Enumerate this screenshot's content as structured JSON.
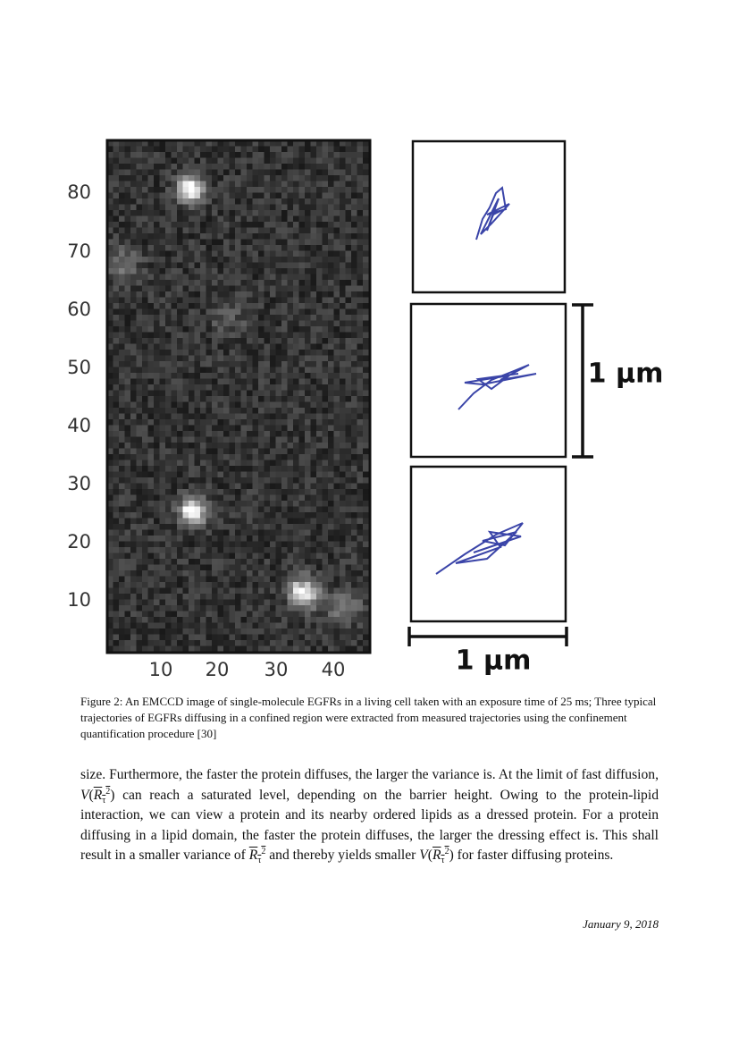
{
  "figure": {
    "y_ticks": [
      "80",
      "70",
      "60",
      "50",
      "40",
      "30",
      "20",
      "10"
    ],
    "x_ticks": [
      "10",
      "20",
      "30",
      "40"
    ],
    "scale_vertical": "1 µm",
    "scale_horizontal": "1 µm",
    "caption": "Figure 2: An EMCCD image of single-molecule EGFRs in a living cell taken with an exposure time of 25 ms; Three typical trajectories of EGFRs diffusing in a confined region were extracted from measured trajectories using the confinement quantification procedure [30]"
  },
  "body": {
    "paragraph": [
      "size. Furthermore, the faster the protein diffuses, the larger the variance is. At the limit of fast diffusion, ",
      {
        "func": "V",
        "open": "(",
        "base": "R",
        "sub": "τ",
        "sup": "2",
        "close": ")"
      },
      " can reach a saturated level, depending on the barrier height. Owing to the protein-lipid interaction, we can view a protein and its nearby ordered lipids as a dressed protein. For a protein diffusing in a lipid domain, the faster the protein diffuses, the larger the dressing effect is. This shall result in a smaller variance of ",
      {
        "base": "R",
        "sub": "τ",
        "sup": "2"
      },
      " and thereby yields smaller ",
      {
        "func": "V",
        "open": "(",
        "base": "R",
        "sub": "τ",
        "sup": "2",
        "close": ")"
      },
      " for faster diffusing proteins."
    ]
  },
  "footer": {
    "date": "January 9, 2018"
  }
}
